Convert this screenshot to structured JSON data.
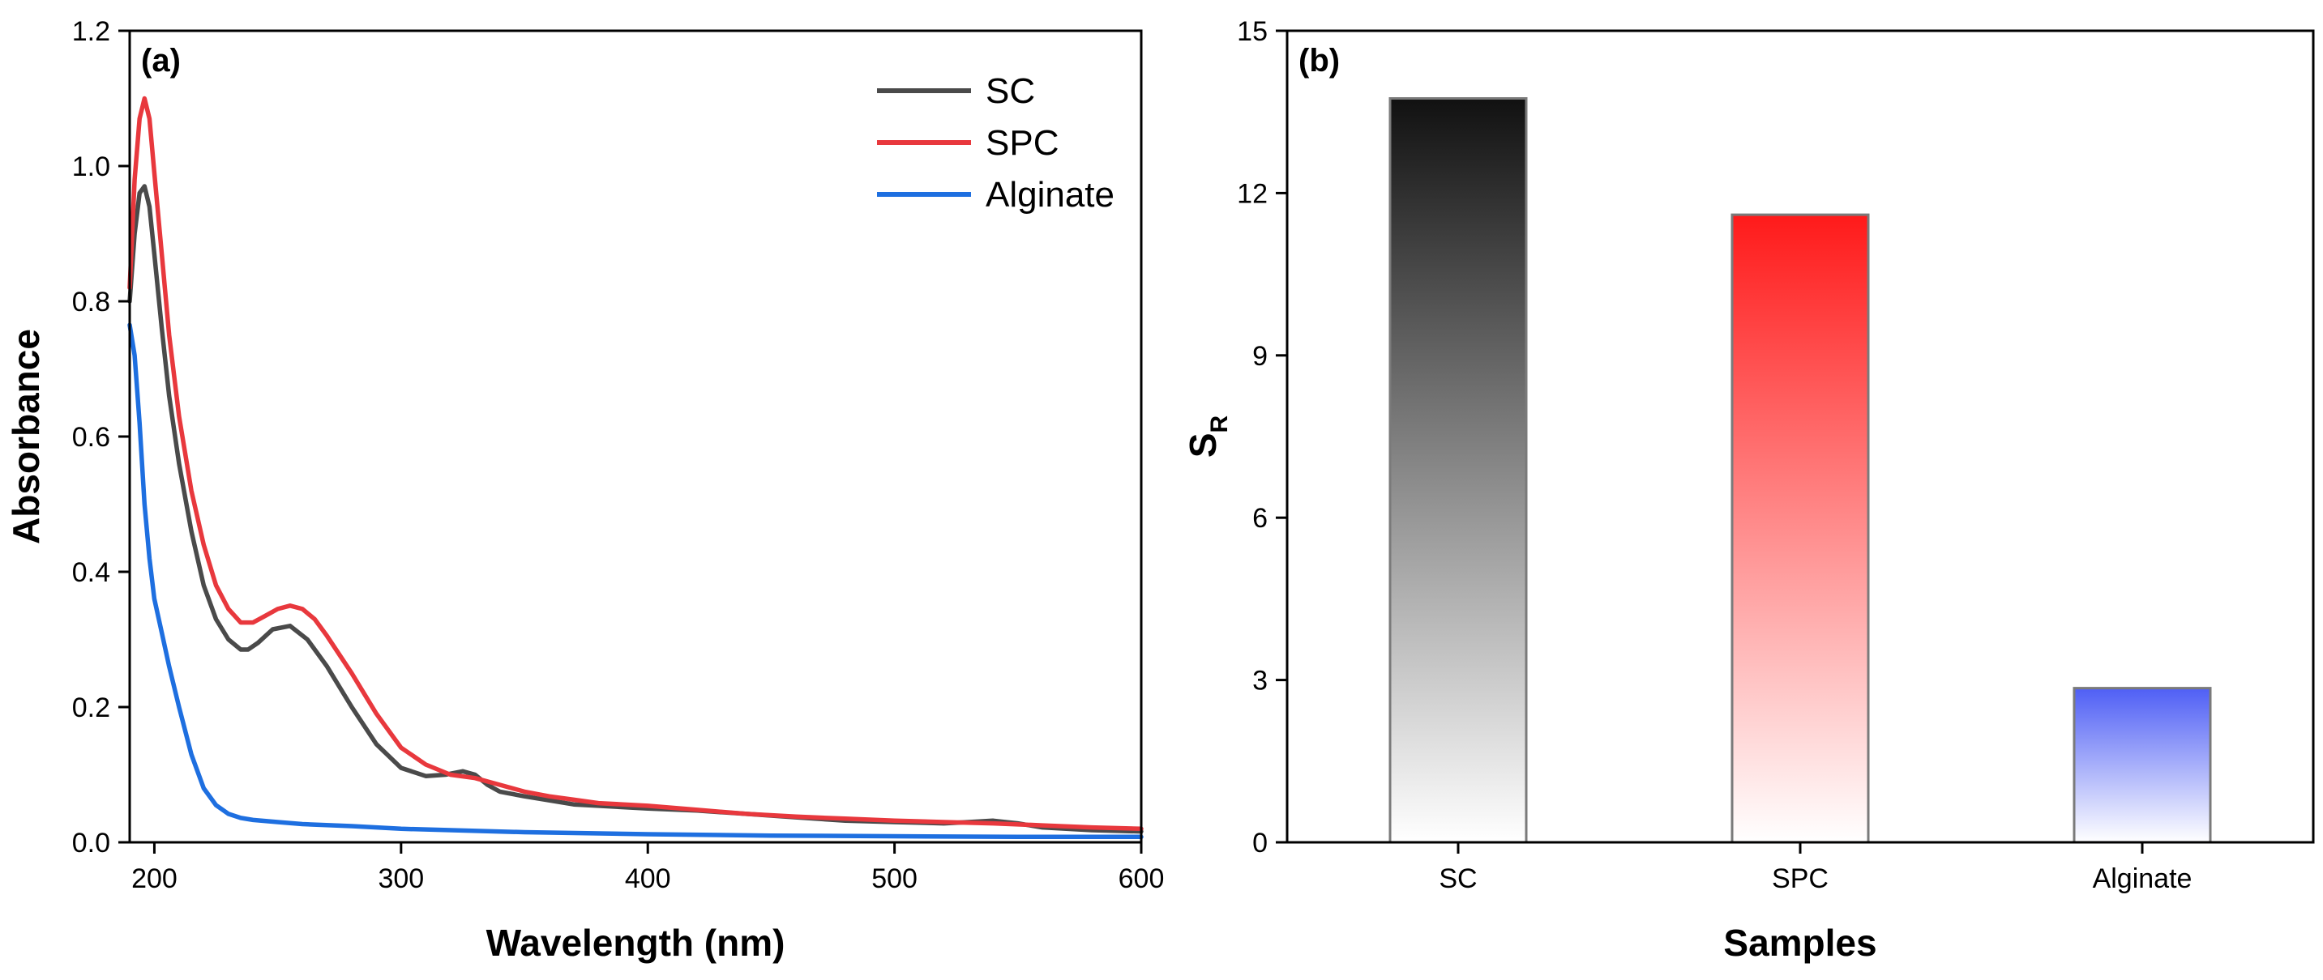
{
  "chart_data": [
    {
      "type": "line",
      "panel_label": "(a)",
      "xlabel": "Wavelength (nm)",
      "ylabel": "Absorbance",
      "xlim": [
        190,
        600
      ],
      "ylim": [
        0.0,
        1.2
      ],
      "xticks": [
        200,
        300,
        400,
        500,
        600
      ],
      "xtick_labels": [
        "200",
        "300",
        "400",
        "500",
        "600"
      ],
      "yticks": [
        0.0,
        0.2,
        0.4,
        0.6,
        0.8,
        1.0,
        1.2
      ],
      "ytick_labels": [
        "0.0",
        "0.2",
        "0.4",
        "0.6",
        "0.8",
        "1.0",
        "1.2"
      ],
      "legend_position": "top-right",
      "series": [
        {
          "name": "SC",
          "color": "#4a4a4a",
          "x": [
            190,
            192,
            194,
            196,
            198,
            200,
            203,
            206,
            210,
            215,
            220,
            225,
            230,
            235,
            238,
            242,
            248,
            255,
            262,
            270,
            280,
            290,
            300,
            310,
            318,
            325,
            330,
            335,
            340,
            350,
            360,
            370,
            380,
            400,
            420,
            440,
            460,
            480,
            500,
            520,
            530,
            540,
            550,
            560,
            580,
            600
          ],
          "y": [
            0.8,
            0.9,
            0.96,
            0.97,
            0.94,
            0.87,
            0.76,
            0.66,
            0.56,
            0.46,
            0.38,
            0.33,
            0.3,
            0.285,
            0.285,
            0.295,
            0.315,
            0.32,
            0.3,
            0.26,
            0.2,
            0.145,
            0.11,
            0.098,
            0.1,
            0.105,
            0.1,
            0.085,
            0.075,
            0.068,
            0.062,
            0.056,
            0.054,
            0.05,
            0.047,
            0.042,
            0.037,
            0.032,
            0.03,
            0.028,
            0.03,
            0.032,
            0.028,
            0.022,
            0.018,
            0.016
          ]
        },
        {
          "name": "SPC",
          "color": "#e8383d",
          "x": [
            190,
            192,
            194,
            196,
            198,
            200,
            203,
            206,
            210,
            215,
            220,
            225,
            230,
            235,
            240,
            245,
            250,
            255,
            260,
            265,
            270,
            280,
            290,
            300,
            310,
            320,
            330,
            340,
            350,
            360,
            370,
            380,
            400,
            420,
            440,
            460,
            480,
            500,
            520,
            540,
            560,
            580,
            600
          ],
          "y": [
            0.82,
            0.98,
            1.07,
            1.1,
            1.07,
            0.99,
            0.87,
            0.75,
            0.63,
            0.52,
            0.44,
            0.38,
            0.345,
            0.325,
            0.325,
            0.335,
            0.345,
            0.35,
            0.345,
            0.33,
            0.305,
            0.25,
            0.19,
            0.14,
            0.115,
            0.1,
            0.095,
            0.085,
            0.075,
            0.068,
            0.063,
            0.058,
            0.054,
            0.048,
            0.042,
            0.038,
            0.035,
            0.032,
            0.03,
            0.028,
            0.025,
            0.022,
            0.02
          ]
        },
        {
          "name": "Alginate",
          "color": "#1e6fe0",
          "x": [
            190,
            192,
            194,
            196,
            198,
            200,
            203,
            206,
            210,
            215,
            220,
            225,
            230,
            235,
            240,
            250,
            260,
            280,
            300,
            350,
            400,
            450,
            500,
            550,
            600
          ],
          "y": [
            0.765,
            0.72,
            0.62,
            0.5,
            0.42,
            0.36,
            0.31,
            0.26,
            0.2,
            0.13,
            0.08,
            0.055,
            0.042,
            0.036,
            0.033,
            0.03,
            0.027,
            0.024,
            0.02,
            0.015,
            0.012,
            0.01,
            0.009,
            0.008,
            0.008
          ]
        }
      ]
    },
    {
      "type": "bar",
      "panel_label": "(b)",
      "xlabel": "Samples",
      "ylabel_main": "S",
      "ylabel_sub": "R",
      "categories": [
        "SC",
        "SPC",
        "Alginate"
      ],
      "values": [
        13.75,
        11.6,
        2.85
      ],
      "bar_colors": [
        "#111111",
        "#ff1a1a",
        "#4f5ff5"
      ],
      "ylim": [
        0,
        15
      ],
      "yticks": [
        0,
        3,
        6,
        9,
        12,
        15
      ],
      "ytick_labels": [
        "0",
        "3",
        "6",
        "9",
        "12",
        "15"
      ]
    }
  ]
}
